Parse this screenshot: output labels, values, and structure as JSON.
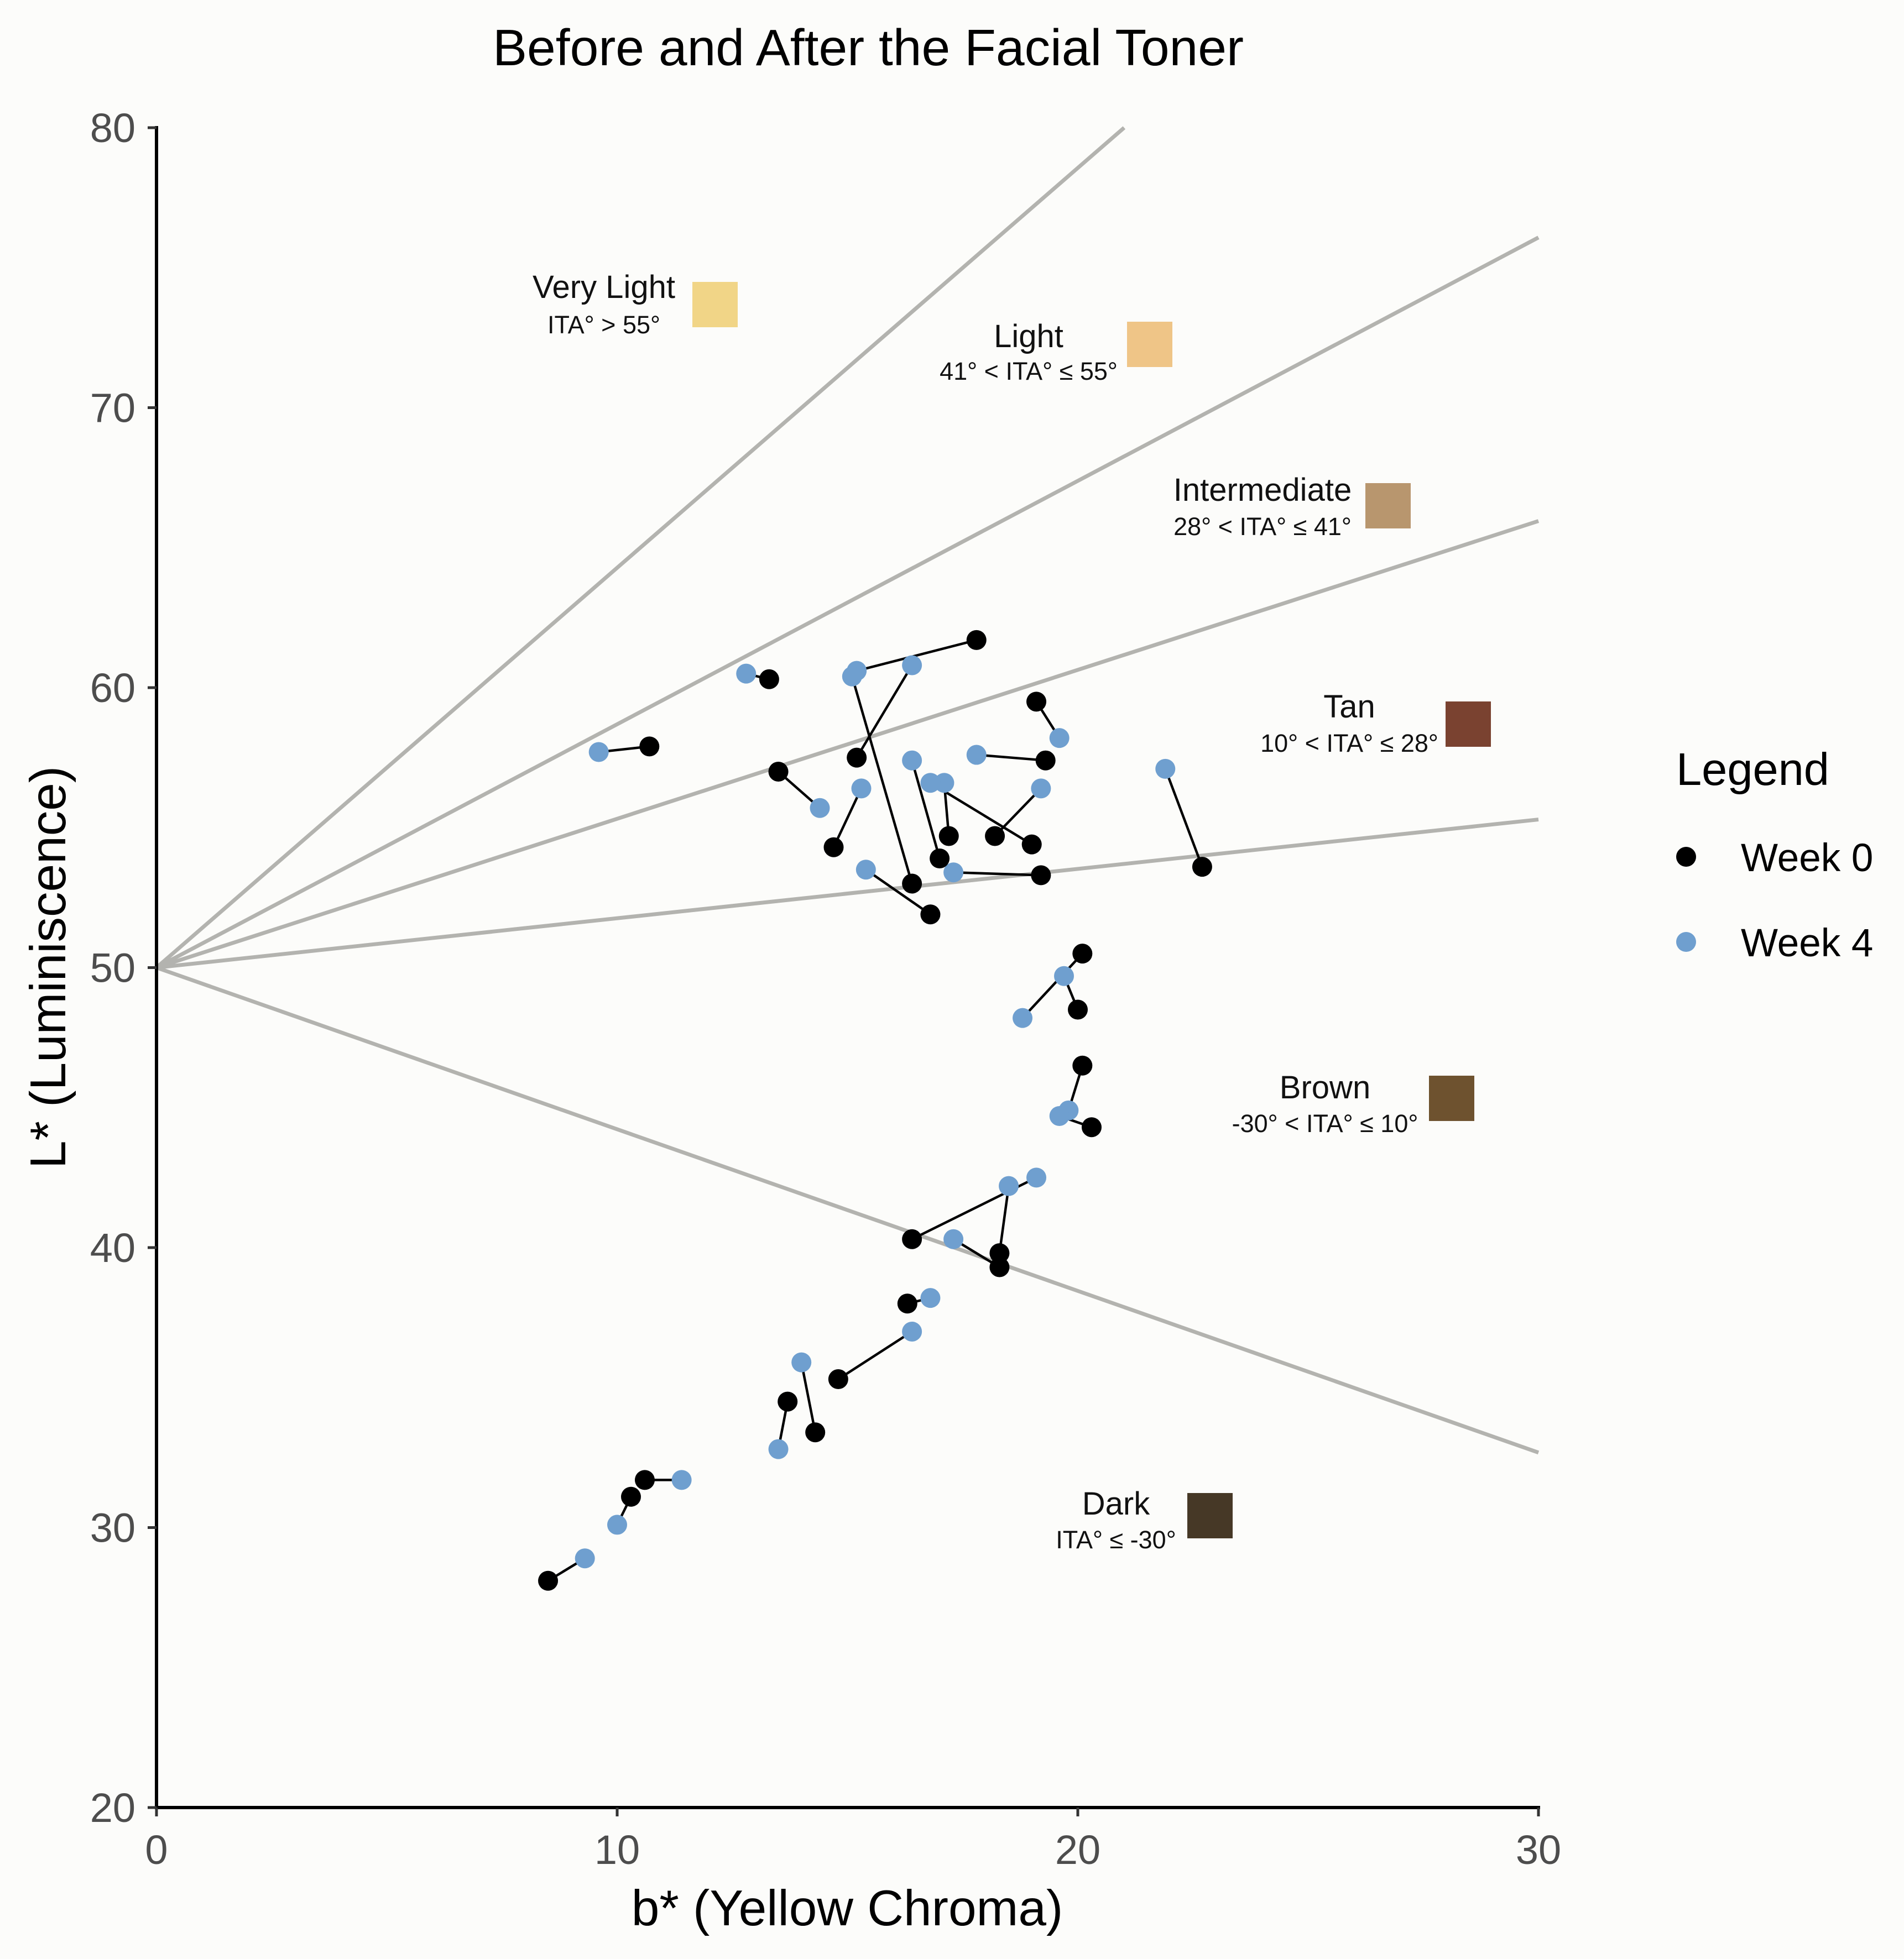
{
  "chart_data": {
    "type": "scatter",
    "title": "Before and After the Facial Toner",
    "xlabel": "b* (Yellow Chroma)",
    "ylabel": "L* (Luminiscence)",
    "xlim": [
      0,
      30
    ],
    "ylim": [
      20,
      80
    ],
    "xticks": [
      0,
      10,
      20,
      30
    ],
    "yticks": [
      80,
      70,
      60,
      50,
      40,
      30,
      20
    ],
    "grid": false,
    "paired": true,
    "legend": {
      "title": "Legend",
      "position": "right"
    },
    "series": [
      {
        "name": "Week 0",
        "color": "#000000",
        "points": [
          [
            10.7,
            57.9
          ],
          [
            13.3,
            60.3
          ],
          [
            17.8,
            61.7
          ],
          [
            15.2,
            57.5
          ],
          [
            16.4,
            53.0
          ],
          [
            19.1,
            59.5
          ],
          [
            19.3,
            57.4
          ],
          [
            13.5,
            57.0
          ],
          [
            14.7,
            54.3
          ],
          [
            17.0,
            53.9
          ],
          [
            17.2,
            54.7
          ],
          [
            19.0,
            54.4
          ],
          [
            18.2,
            54.7
          ],
          [
            16.8,
            51.9
          ],
          [
            19.2,
            53.3
          ],
          [
            22.7,
            53.6
          ],
          [
            20.1,
            50.5
          ],
          [
            20.0,
            48.5
          ],
          [
            20.1,
            46.5
          ],
          [
            20.3,
            44.3
          ],
          [
            16.4,
            40.3
          ],
          [
            18.3,
            39.8
          ],
          [
            18.3,
            39.3
          ],
          [
            16.3,
            38.0
          ],
          [
            14.8,
            35.3
          ],
          [
            14.3,
            33.4
          ],
          [
            13.7,
            34.5
          ],
          [
            10.6,
            31.7
          ],
          [
            10.3,
            31.1
          ],
          [
            8.5,
            28.1
          ]
        ]
      },
      {
        "name": "Week 4",
        "color": "#6F9FCF",
        "points": [
          [
            9.6,
            57.7
          ],
          [
            12.8,
            60.5
          ],
          [
            15.2,
            60.6
          ],
          [
            16.4,
            60.8
          ],
          [
            15.1,
            60.4
          ],
          [
            19.6,
            58.2
          ],
          [
            17.8,
            57.6
          ],
          [
            14.4,
            55.7
          ],
          [
            15.3,
            56.4
          ],
          [
            16.4,
            57.4
          ],
          [
            17.1,
            56.6
          ],
          [
            16.8,
            56.6
          ],
          [
            19.2,
            56.4
          ],
          [
            15.4,
            53.5
          ],
          [
            17.3,
            53.4
          ],
          [
            21.9,
            57.1
          ],
          [
            18.8,
            48.2
          ],
          [
            19.7,
            49.7
          ],
          [
            19.8,
            44.9
          ],
          [
            19.6,
            44.7
          ],
          [
            19.1,
            42.5
          ],
          [
            18.5,
            42.2
          ],
          [
            17.3,
            40.3
          ],
          [
            16.8,
            38.2
          ],
          [
            16.4,
            37.0
          ],
          [
            14.0,
            35.9
          ],
          [
            13.5,
            32.8
          ],
          [
            11.4,
            31.7
          ],
          [
            10.0,
            30.1
          ],
          [
            9.3,
            28.9
          ]
        ]
      }
    ],
    "ita_reference_lines": {
      "origin": [
        0,
        50
      ],
      "angles_deg": [
        55,
        41,
        28,
        10,
        -30
      ],
      "color": "#B3B3AF"
    },
    "skin_categories": [
      {
        "name": "Very Light",
        "rule": "ITA° > 55°",
        "color": "#F1D587"
      },
      {
        "name": "Light",
        "rule": "41° < ITA° ≤ 55°",
        "color": "#EFC587"
      },
      {
        "name": "Intermediate",
        "rule": "28° < ITA° ≤ 41°",
        "color": "#B8966E"
      },
      {
        "name": "Tan",
        "rule": "10° < ITA° ≤ 28°",
        "color": "#7A4230"
      },
      {
        "name": "Brown",
        "rule": "-30° < ITA° ≤ 10°",
        "color": "#6E522F"
      },
      {
        "name": "Dark",
        "rule": "ITA° ≤ -30°",
        "color": "#463826"
      }
    ]
  }
}
